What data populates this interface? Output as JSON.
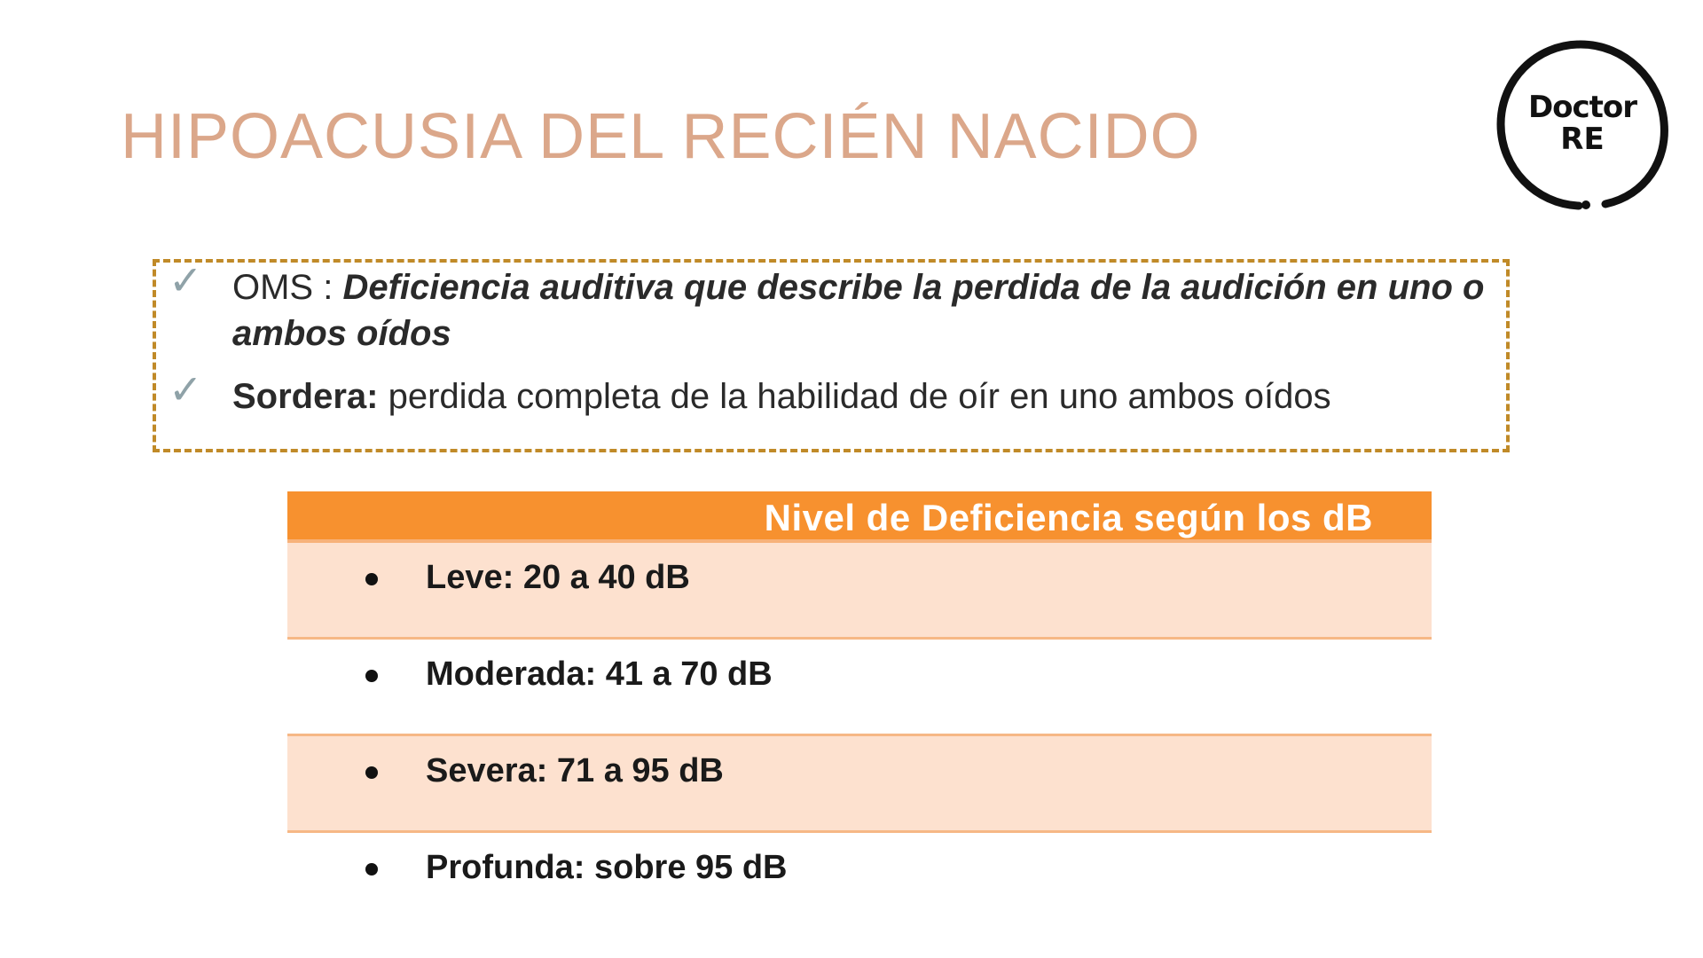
{
  "slide": {
    "title": "HIPOACUSIA DEL RECIÉN NACIDO"
  },
  "logo": {
    "line1": "Doctor",
    "line2": "RE",
    "icon": "circle-brush-logo"
  },
  "definitions": {
    "oms_label": "OMS : ",
    "oms_text": "Deficiencia auditiva que describe la perdida de la audición en uno o ambos oídos",
    "sordera_label": "Sordera:",
    "sordera_text": " perdida completa de la habilidad de oír en uno ambos oídos"
  },
  "table": {
    "header": "Nivel de Deficiencia según los dB",
    "rows": [
      {
        "label": "Leve: 20 a 40 dB"
      },
      {
        "label": "Moderada: 41 a 70 dB"
      },
      {
        "label": "Severa: 71 a 95 dB"
      },
      {
        "label": "Profunda: sobre 95 dB"
      }
    ]
  },
  "colors": {
    "title": "#dba78a",
    "box_border": "#c08a28",
    "table_header": "#f7912f",
    "row_shaded": "#fde1cf",
    "check": "#8fa2a8"
  }
}
